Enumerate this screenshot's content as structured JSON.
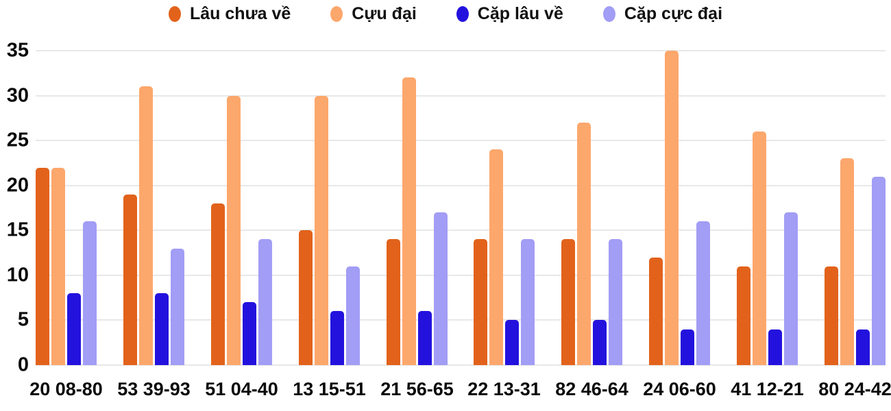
{
  "chart_data": {
    "type": "bar",
    "title": "",
    "xlabel": "",
    "ylabel": "",
    "ylim": [
      0,
      35
    ],
    "yticks": [
      0,
      5,
      10,
      15,
      20,
      25,
      30,
      35
    ],
    "grid": true,
    "legend_position": "top",
    "categories": [
      "20 08-80",
      "53 39-93",
      "51 04-40",
      "13 15-51",
      "21 56-65",
      "22 13-31",
      "82 46-64",
      "24 06-60",
      "41 12-21",
      "80 24-42"
    ],
    "series": [
      {
        "name": "Lâu chưa về",
        "color": "#e2621b",
        "values": [
          22,
          19,
          18,
          15,
          14,
          14,
          14,
          12,
          11,
          11
        ]
      },
      {
        "name": "Cựu đại",
        "color": "#fca76c",
        "values": [
          22,
          31,
          30,
          30,
          32,
          24,
          27,
          35,
          26,
          23
        ]
      },
      {
        "name": "Cặp lâu về",
        "color": "#2312dd",
        "values": [
          8,
          8,
          7,
          6,
          6,
          5,
          5,
          4,
          4,
          4
        ]
      },
      {
        "name": "Cặp cực đại",
        "color": "#a29df5",
        "values": [
          16,
          13,
          14,
          11,
          17,
          14,
          14,
          16,
          17,
          21
        ]
      }
    ],
    "gridline_color": "#e8e8e8",
    "text_color": "#0a0a0a"
  }
}
